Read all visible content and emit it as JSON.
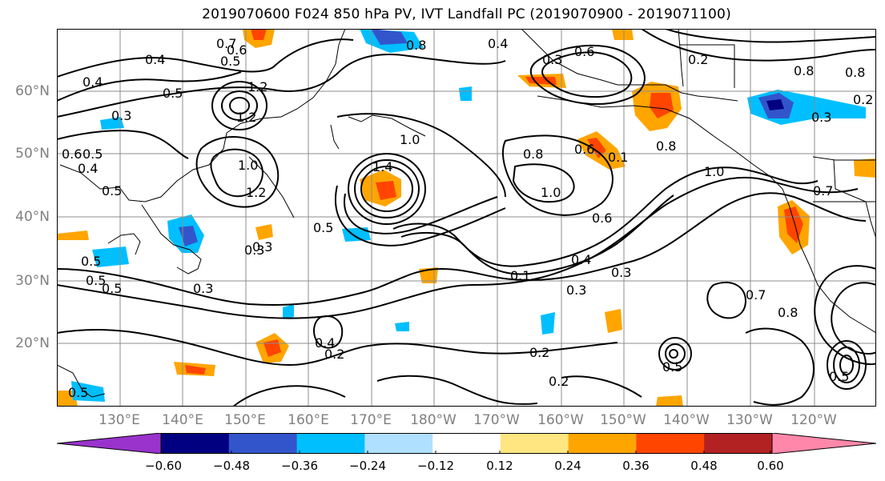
{
  "title": "2019070600 F024 850 hPa PV, IVT Landfall PC (2019070900 - 2019071100)",
  "lat_labels": [
    "60°N",
    "50°N",
    "40°N",
    "30°N",
    "20°N"
  ],
  "lon_labels": [
    "130°E",
    "140°E",
    "150°E",
    "160°E",
    "170°E",
    "180°W",
    "170°W",
    "160°W",
    "150°W",
    "140°W",
    "130°W",
    "120°W"
  ],
  "contour_labels": [
    "0.7",
    "0.6",
    "0.5",
    "0.4",
    "0.4",
    "0.3",
    "0.5",
    "1.2",
    "1.2",
    "1.0",
    "1.2",
    "0.5",
    "0.6",
    "0.5",
    "0.4",
    "0.3",
    "0.5",
    "0.3",
    "1.4",
    "1.0",
    "0.5",
    "0.3",
    "0.8",
    "0.4",
    "0.3",
    "0.6",
    "1.0",
    "0.8",
    "0.6",
    "0.1",
    "0.4",
    "0.8",
    "0.6",
    "0.4",
    "0.3",
    "0.1",
    "0.3",
    "0.2",
    "0.2",
    "0.5",
    "0.2",
    "1.0",
    "0.8",
    "0.2",
    "0.3",
    "0.2",
    "0.7",
    "0.8",
    "0.7",
    "0.8",
    "0.5",
    "0.5",
    "0.5",
    "0.5"
  ],
  "colorbar": {
    "ticks": [
      "−0.60",
      "−0.48",
      "−0.36",
      "−0.24",
      "−0.12",
      "0.12",
      "0.24",
      "0.36",
      "0.48",
      "0.60"
    ],
    "colors": [
      "#9933cc",
      "#000080",
      "#3355cc",
      "#00bfff",
      "#b0e0ff",
      "#ffffff",
      "#ffe680",
      "#ffa500",
      "#ff4500",
      "#b22222",
      "#ff88aa",
      "#ff88aa"
    ]
  }
}
